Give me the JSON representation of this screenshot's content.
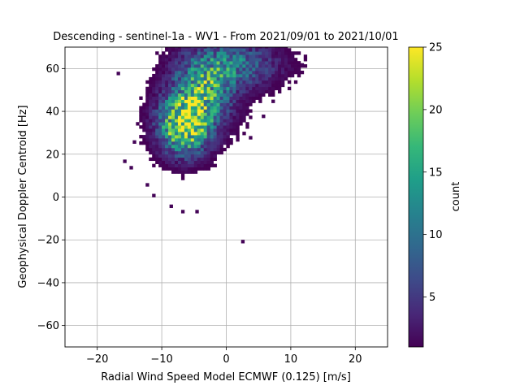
{
  "chart_data": {
    "type": "heatmap",
    "title": "Descending - sentinel-1a - WV1 - From 2021/09/01 to 2021/10/01",
    "xlabel": "Radial Wind Speed Model ECMWF (0.125) [m/s]",
    "ylabel": "Geophysical Doppler Centroid [Hz]",
    "xlim": [
      -25,
      25
    ],
    "ylim": [
      -70,
      70
    ],
    "x_ticks": [
      -20,
      -10,
      0,
      10,
      20
    ],
    "x_tick_labels": [
      "−20",
      "−10",
      "0",
      "10",
      "20"
    ],
    "y_ticks": [
      -60,
      -40,
      -20,
      0,
      20,
      40,
      60
    ],
    "y_tick_labels": [
      "−60",
      "−40",
      "−20",
      "0",
      "20",
      "40",
      "60"
    ],
    "grid": true,
    "bin_size": {
      "x": 0.5,
      "y": 1.5
    },
    "colormap": "viridis",
    "colorbar": {
      "label": "count",
      "range": [
        1,
        25
      ],
      "ticks": [
        5,
        10,
        15,
        20,
        25
      ],
      "tick_labels": [
        "5",
        "10",
        "15",
        "20",
        "25"
      ]
    },
    "density_clusters": [
      {
        "center_x": -6.5,
        "center_y": 34,
        "sigma_x": 2.6,
        "sigma_y": 9,
        "peak_count": 24
      },
      {
        "center_x": -3.5,
        "center_y": 50,
        "sigma_x": 3.2,
        "sigma_y": 11,
        "peak_count": 14
      },
      {
        "center_x": 1.5,
        "center_y": 62,
        "sigma_x": 4.5,
        "sigma_y": 7,
        "peak_count": 9
      }
    ],
    "outliers": [
      {
        "x": -17,
        "y": 57
      },
      {
        "x": 2.3,
        "y": -21.5
      },
      {
        "x": -8.8,
        "y": -5
      },
      {
        "x": -7,
        "y": -7.5
      },
      {
        "x": -4.8,
        "y": -7.5
      },
      {
        "x": 11.5,
        "y": 61
      },
      {
        "x": 7,
        "y": 44
      },
      {
        "x": -14.5,
        "y": 25
      },
      {
        "x": -16,
        "y": 16
      },
      {
        "x": -15,
        "y": 13
      },
      {
        "x": -12.5,
        "y": 5
      },
      {
        "x": -11.5,
        "y": 0
      },
      {
        "x": 10,
        "y": 65
      },
      {
        "x": 3.5,
        "y": 27
      },
      {
        "x": 5.5,
        "y": 37
      }
    ]
  }
}
